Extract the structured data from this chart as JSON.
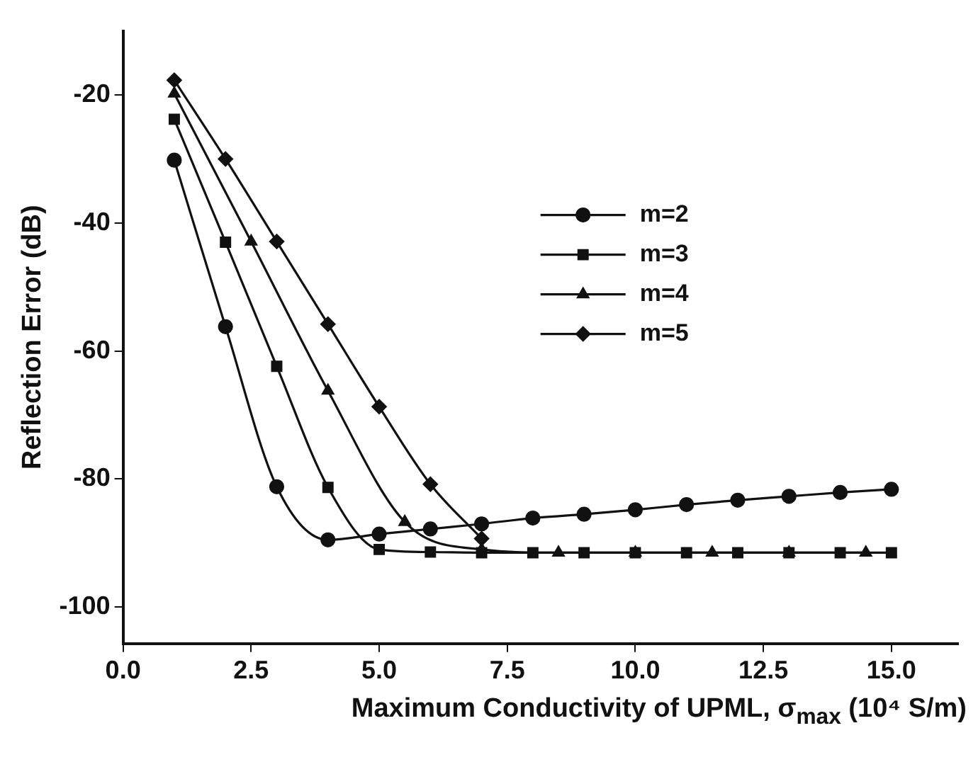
{
  "chart_data": {
    "type": "line",
    "xlabel": "Maximum Conductivity of UPML, σ$_{max}$  (10⁴ S/m)",
    "ylabel": "Reflection Error (dB)",
    "xlim": [
      0,
      16.3
    ],
    "xticks": [
      {
        "value": 0,
        "label": "0.0"
      },
      2.5,
      {
        "value": 5,
        "label": "5.0"
      },
      7.5,
      {
        "value": 10,
        "label": "10.0"
      },
      12.5,
      {
        "value": 15,
        "label": "15.0"
      }
    ],
    "ylim": [
      -105.7,
      -10
    ],
    "yticks": [
      -100,
      -80,
      -60,
      -40,
      -20
    ],
    "grid": false,
    "legend": "right",
    "series": [
      {
        "name": "m=2",
        "color": "#111111",
        "marker": "circle",
        "x": [
          1,
          2,
          3,
          4,
          5,
          6,
          7,
          8,
          9,
          10,
          11,
          12,
          13,
          14,
          15
        ],
        "values": [
          -30.2,
          -56.2,
          -81.2,
          -89.5,
          -88.6,
          -87.8,
          -87,
          -86.1,
          -85.5,
          -84.8,
          -84,
          -83.3,
          -82.7,
          -82.1,
          -81.6
        ]
      },
      {
        "name": "m=3",
        "color": "#111111",
        "marker": "square",
        "x": [
          1,
          2,
          3,
          4,
          5,
          6,
          7,
          8,
          9,
          10,
          11,
          12,
          13,
          14,
          15
        ],
        "values": [
          -23.8,
          -43,
          -62.4,
          -81.3,
          -91,
          -91.4,
          -91.5,
          -91.5,
          -91.5,
          -91.5,
          -91.5,
          -91.5,
          -91.5,
          -91.5,
          -91.5
        ]
      },
      {
        "name": "m=4",
        "color": "#111111",
        "marker": "triangle",
        "x": [
          1,
          2.5,
          4,
          5.5,
          7,
          8.5,
          10,
          11.5,
          13,
          14.5
        ],
        "values": [
          -19.8,
          -42.9,
          -66.2,
          -86.7,
          -91,
          -91.5,
          -91.5,
          -91.5,
          -91.5,
          -91.5
        ]
      },
      {
        "name": "m=5",
        "color": "#111111",
        "marker": "diamond",
        "x": [
          1,
          2,
          3,
          4,
          5,
          6,
          7
        ],
        "values": [
          -17.7,
          -30,
          -42.9,
          -55.8,
          -68.7,
          -80.8,
          -89.3
        ]
      }
    ]
  }
}
